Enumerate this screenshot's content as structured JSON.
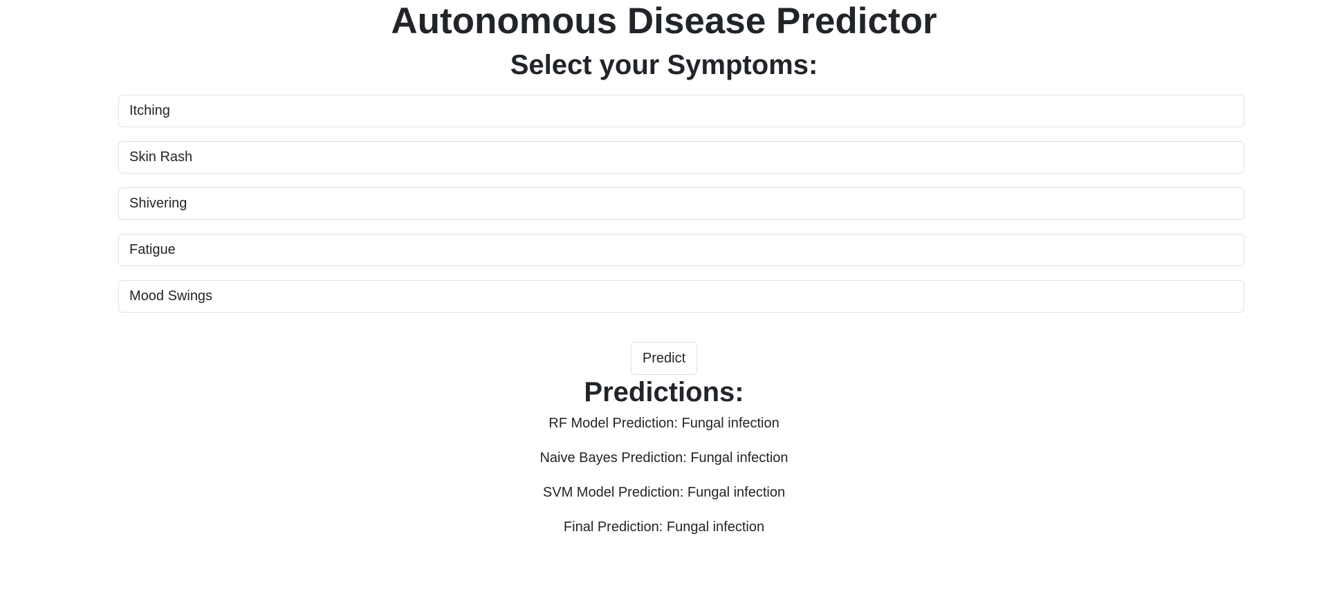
{
  "header": {
    "title": "Autonomous Disease Predictor",
    "subtitle": "Select your Symptoms:"
  },
  "symptoms": [
    {
      "selected": "Itching"
    },
    {
      "selected": "Skin Rash"
    },
    {
      "selected": "Shivering"
    },
    {
      "selected": "Fatigue"
    },
    {
      "selected": "Mood Swings"
    }
  ],
  "actions": {
    "predict_label": "Predict"
  },
  "predictions": {
    "title": "Predictions:",
    "lines": [
      {
        "label": "RF Model Prediction: Fungal infection"
      },
      {
        "label": "Naive Bayes Prediction: Fungal infection"
      },
      {
        "label": "SVM Model Prediction: Fungal infection"
      },
      {
        "label": "Final Prediction: Fungal infection"
      }
    ]
  },
  "colors": {
    "text": "#212529",
    "border": "#dee2e6",
    "background": "#ffffff"
  }
}
